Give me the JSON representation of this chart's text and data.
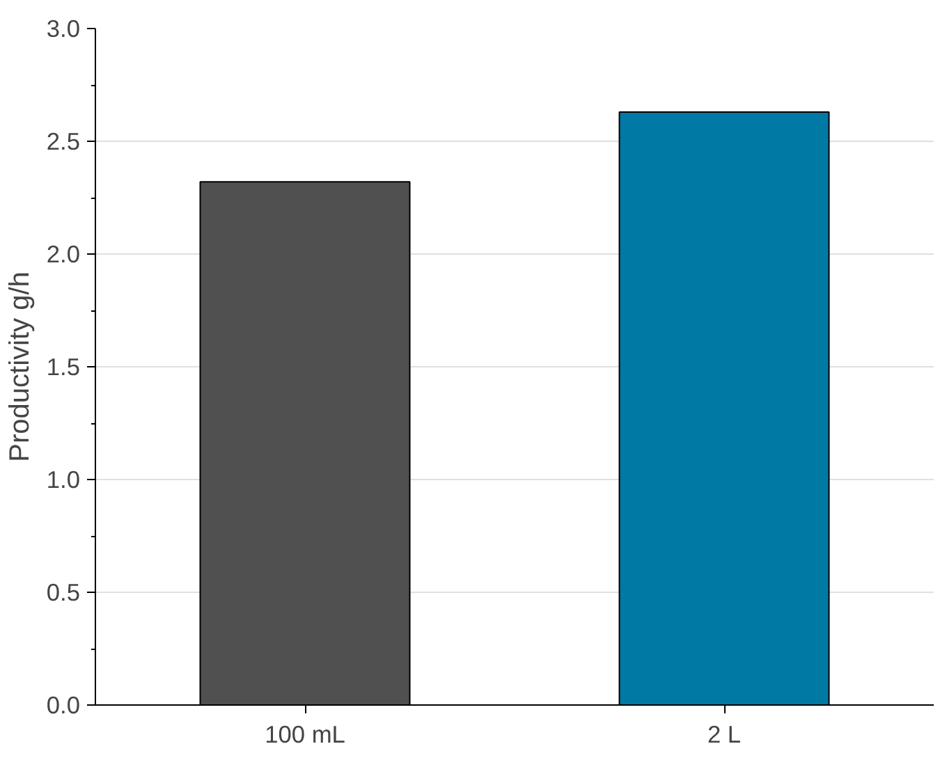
{
  "chart_data": {
    "type": "bar",
    "ylabel": "Productivity g/h",
    "categories": [
      "100 mL",
      "2 L"
    ],
    "values": [
      2.32,
      2.63
    ],
    "colors": [
      "#505050",
      "#0079a5"
    ],
    "ylim": [
      0,
      3
    ],
    "yticks": [
      {
        "value": 0,
        "label": "0.0"
      },
      0.5,
      {
        "value": 1,
        "label": "1.0"
      },
      1.5,
      {
        "value": 2,
        "label": "2.0"
      },
      2.5,
      {
        "value": 3,
        "label": "3.0"
      }
    ],
    "grid": "y"
  }
}
